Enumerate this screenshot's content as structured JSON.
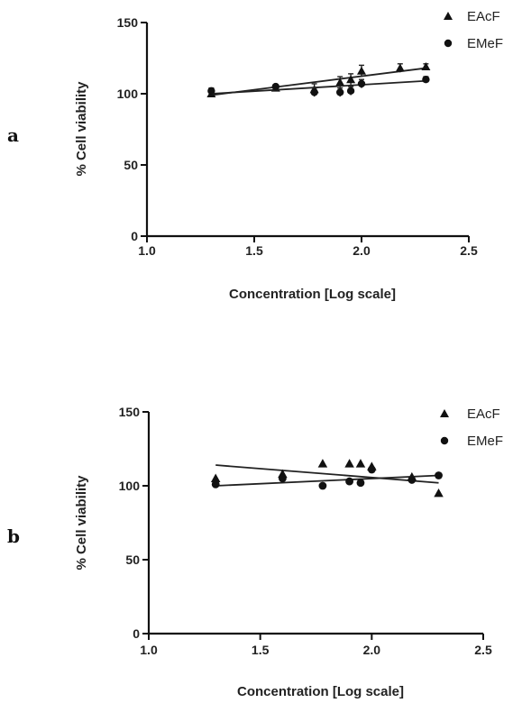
{
  "chart_data": [
    {
      "type": "scatter",
      "panel_label": "a",
      "xlabel": "Concentration [Log scale]",
      "ylabel": "% Cell viability",
      "xlim": [
        1.0,
        2.5
      ],
      "ylim": [
        0,
        150
      ],
      "x_ticks": [
        "1.0",
        "1.5",
        "2.0",
        "2.5"
      ],
      "y_ticks": [
        "0",
        "50",
        "100",
        "150"
      ],
      "grid": false,
      "legend_position": "top-right",
      "series": [
        {
          "name": "EAcF",
          "marker": "triangle",
          "points": [
            {
              "x": 1.3,
              "y": 100,
              "err": 2
            },
            {
              "x": 1.6,
              "y": 104,
              "err": 1
            },
            {
              "x": 1.78,
              "y": 103,
              "err": 4
            },
            {
              "x": 1.9,
              "y": 108,
              "err": 4
            },
            {
              "x": 1.95,
              "y": 110,
              "err": 4
            },
            {
              "x": 2.0,
              "y": 116,
              "err": 4
            },
            {
              "x": 2.18,
              "y": 118,
              "err": 3
            },
            {
              "x": 2.3,
              "y": 119,
              "err": 2
            }
          ],
          "fit": [
            {
              "x": 1.3,
              "y": 99
            },
            {
              "x": 2.3,
              "y": 118
            }
          ]
        },
        {
          "name": "EMeF",
          "marker": "circle",
          "points": [
            {
              "x": 1.3,
              "y": 102,
              "err": 2
            },
            {
              "x": 1.6,
              "y": 105,
              "err": 1
            },
            {
              "x": 1.78,
              "y": 101,
              "err": 3
            },
            {
              "x": 1.9,
              "y": 101,
              "err": 3
            },
            {
              "x": 1.95,
              "y": 102,
              "err": 3
            },
            {
              "x": 2.0,
              "y": 107,
              "err": 3
            },
            {
              "x": 2.3,
              "y": 110,
              "err": 2
            }
          ],
          "fit": [
            {
              "x": 1.3,
              "y": 100
            },
            {
              "x": 2.3,
              "y": 109
            }
          ]
        }
      ]
    },
    {
      "type": "scatter",
      "panel_label": "b",
      "xlabel": "Concentration [Log scale]",
      "ylabel": "% Cell viability",
      "xlim": [
        1.0,
        2.5
      ],
      "ylim": [
        0,
        150
      ],
      "x_ticks": [
        "1.0",
        "1.5",
        "2.0",
        "2.5"
      ],
      "y_ticks": [
        "0",
        "50",
        "100",
        "150"
      ],
      "grid": false,
      "legend_position": "top-right",
      "series": [
        {
          "name": "EAcF",
          "marker": "triangle",
          "points": [
            {
              "x": 1.3,
              "y": 105
            },
            {
              "x": 1.6,
              "y": 108
            },
            {
              "x": 1.78,
              "y": 115
            },
            {
              "x": 1.9,
              "y": 115
            },
            {
              "x": 1.95,
              "y": 115
            },
            {
              "x": 2.0,
              "y": 113
            },
            {
              "x": 2.18,
              "y": 106
            },
            {
              "x": 2.3,
              "y": 95
            }
          ],
          "fit": [
            {
              "x": 1.3,
              "y": 114
            },
            {
              "x": 2.3,
              "y": 102
            }
          ]
        },
        {
          "name": "EMeF",
          "marker": "circle",
          "points": [
            {
              "x": 1.3,
              "y": 101
            },
            {
              "x": 1.6,
              "y": 105
            },
            {
              "x": 1.78,
              "y": 100
            },
            {
              "x": 1.9,
              "y": 103
            },
            {
              "x": 1.95,
              "y": 102
            },
            {
              "x": 2.0,
              "y": 111
            },
            {
              "x": 2.18,
              "y": 104
            },
            {
              "x": 2.3,
              "y": 107
            }
          ],
          "fit": [
            {
              "x": 1.3,
              "y": 100
            },
            {
              "x": 2.3,
              "y": 107
            }
          ]
        }
      ]
    }
  ]
}
